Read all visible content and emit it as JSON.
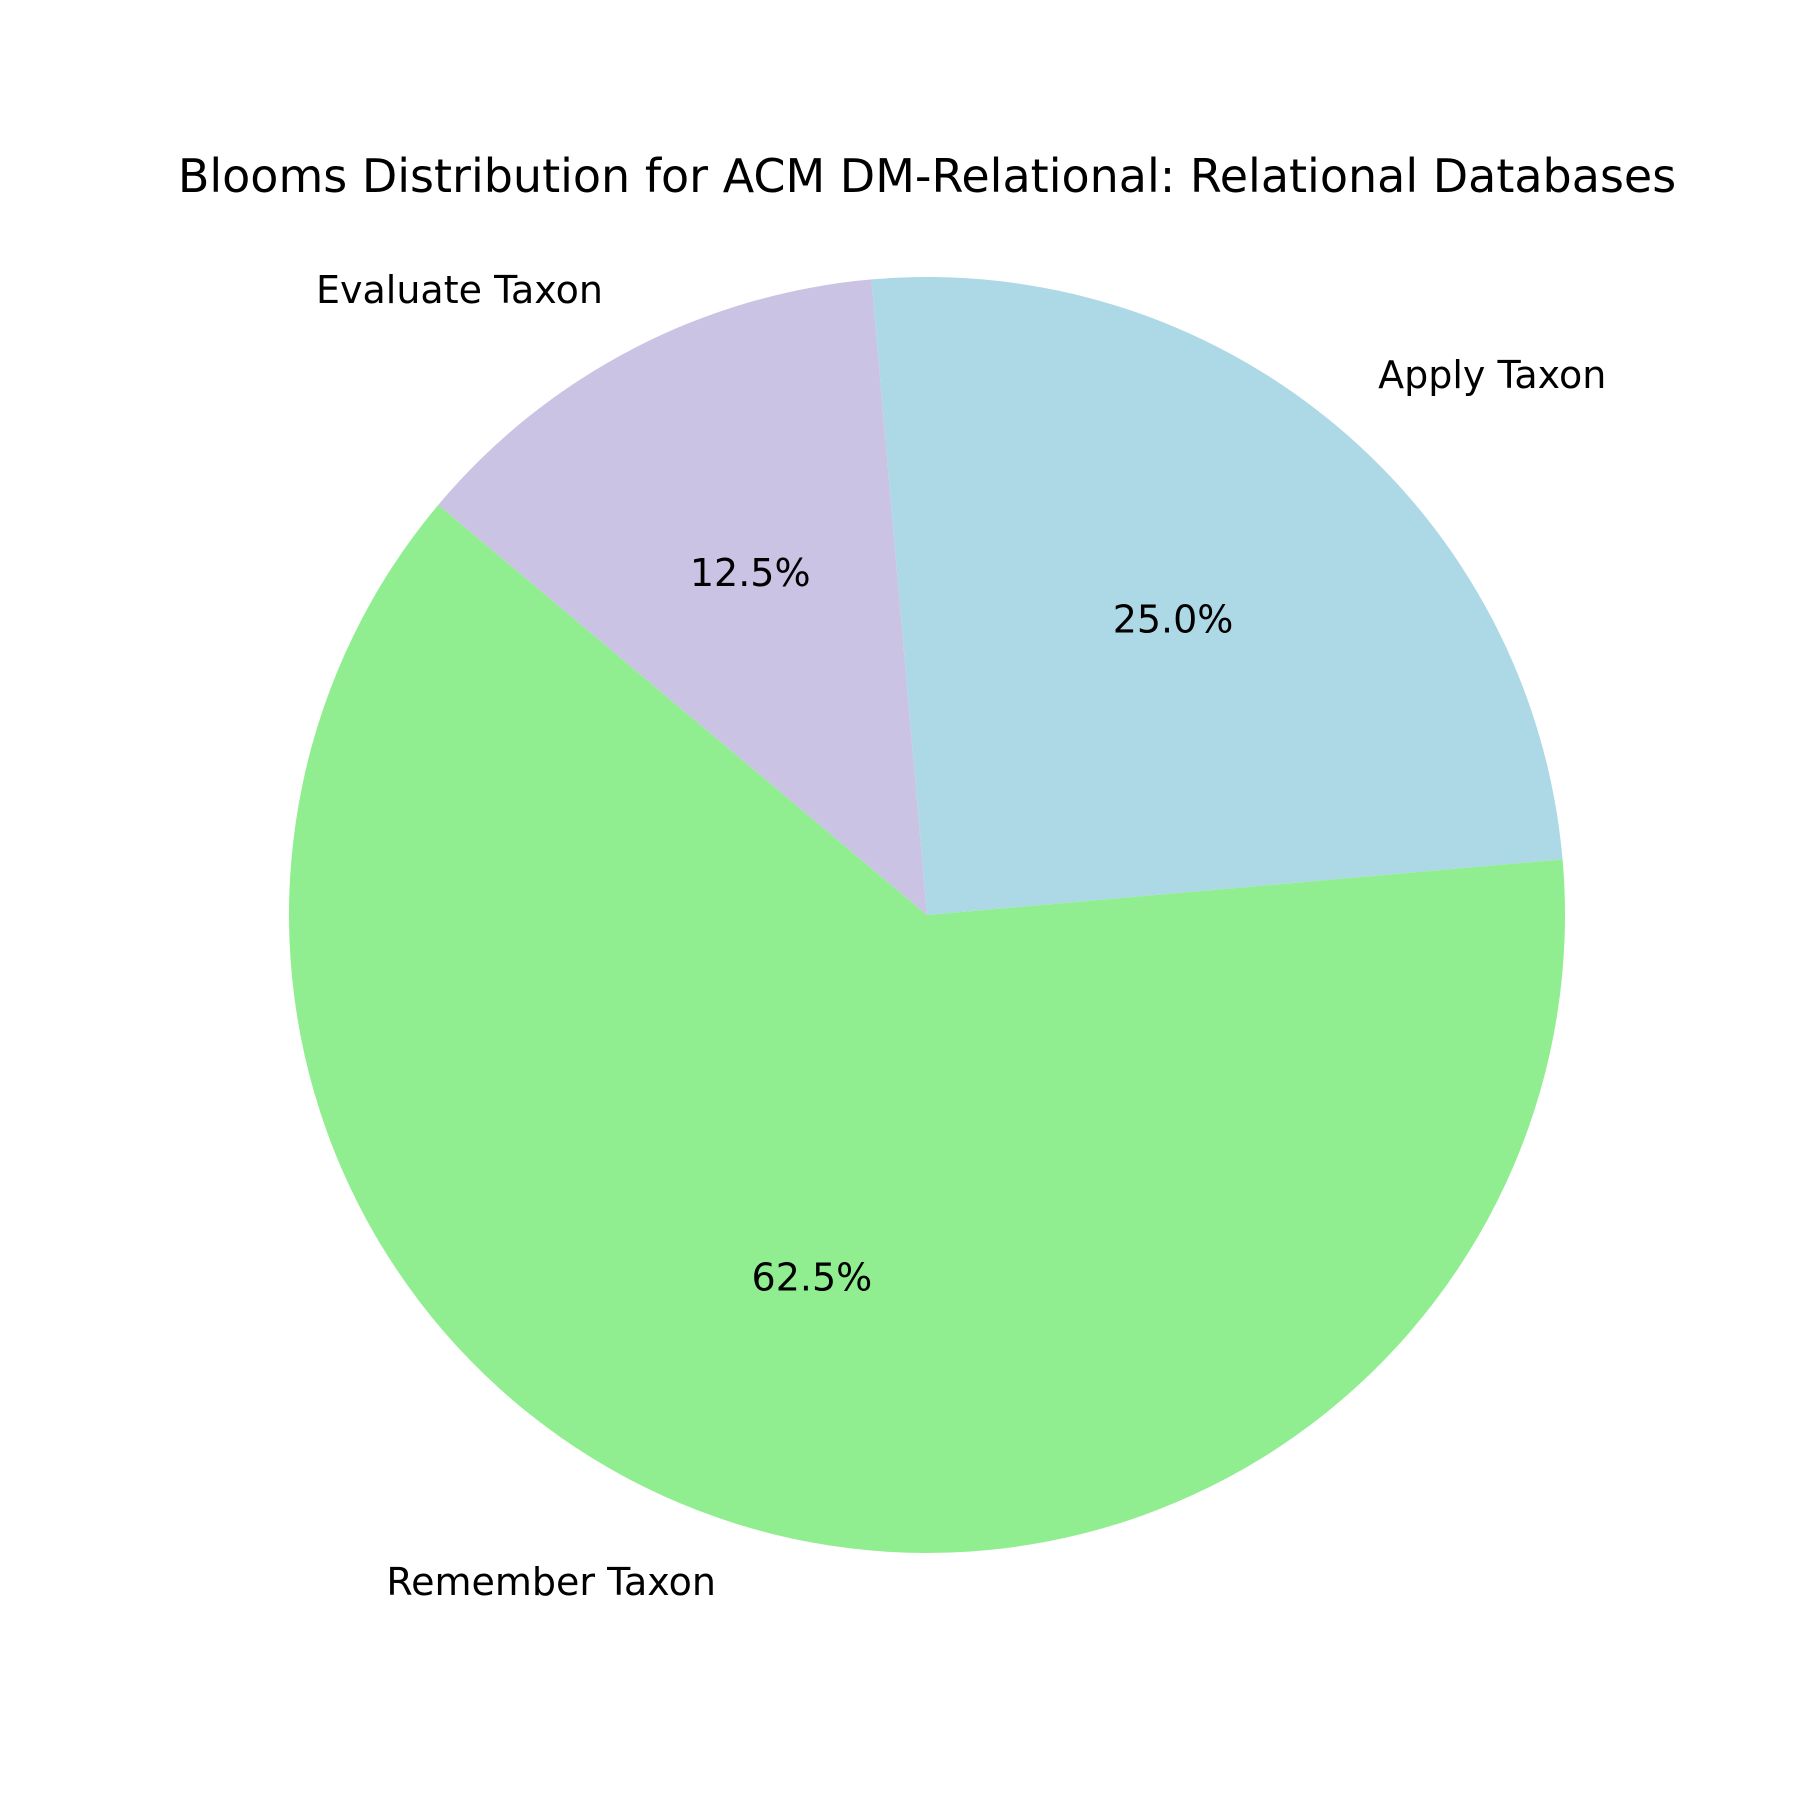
{
  "chart_data": {
    "type": "pie",
    "title": "Blooms Distribution for ACM DM-Relational: Relational Databases",
    "slices": [
      {
        "label": "Apply Taxon",
        "value": 25.0,
        "pct_label": "25.0%",
        "color": "#add8e6"
      },
      {
        "label": "Remember Taxon",
        "value": 62.5,
        "pct_label": "62.5%",
        "color": "#90ee90"
      },
      {
        "label": "Evaluate Taxon",
        "value": 12.5,
        "pct_label": "12.5%",
        "color": "#cbc3e3"
      }
    ],
    "start_angle_deg": 95,
    "direction": "clockwise",
    "legend": "none"
  }
}
